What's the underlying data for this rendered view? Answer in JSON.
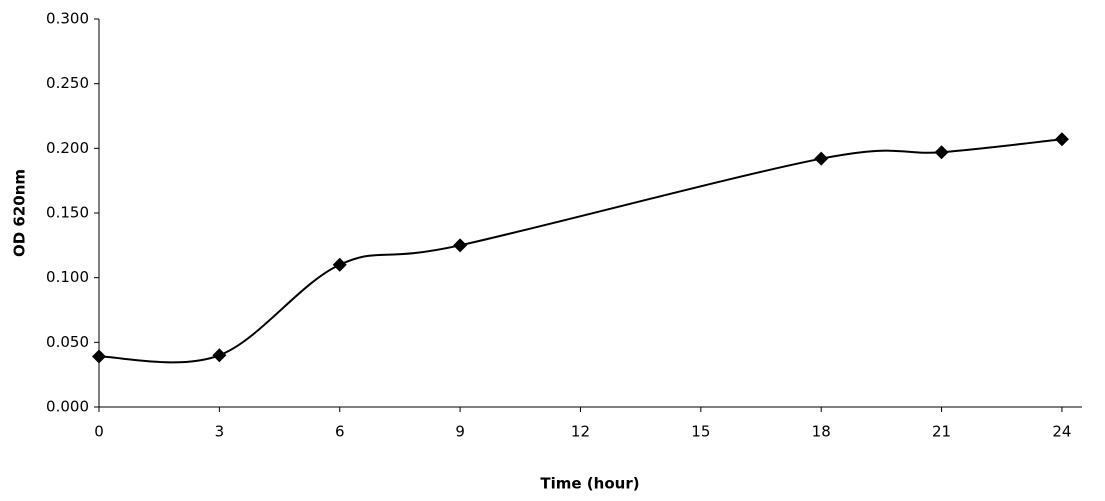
{
  "chart_data": {
    "type": "line",
    "x_label": "Time (hour)",
    "y_label": "OD 620nm",
    "x": [
      0,
      3,
      6,
      9,
      18,
      21,
      24
    ],
    "series": [
      {
        "color": "#000000",
        "values": [
          0.039,
          0.04,
          0.11,
          0.125,
          0.192,
          0.197,
          0.207
        ]
      }
    ],
    "smooth": true,
    "xlim": [
      0,
      24.5
    ],
    "xticks": [
      0,
      3,
      6,
      9,
      12,
      15,
      18,
      21,
      24
    ],
    "ylim": [
      0,
      0.3
    ],
    "yticks": [
      {
        "value": 0,
        "label": "0.000"
      },
      {
        "value": 0.05,
        "label": "0.050"
      },
      {
        "value": 0.1,
        "label": "0.100"
      },
      {
        "value": 0.15,
        "label": "0.150"
      },
      {
        "value": 0.2,
        "label": "0.200"
      },
      {
        "value": 0.25,
        "label": "0.250"
      },
      {
        "value": 0.3,
        "label": "0.300"
      }
    ],
    "grid": false
  }
}
